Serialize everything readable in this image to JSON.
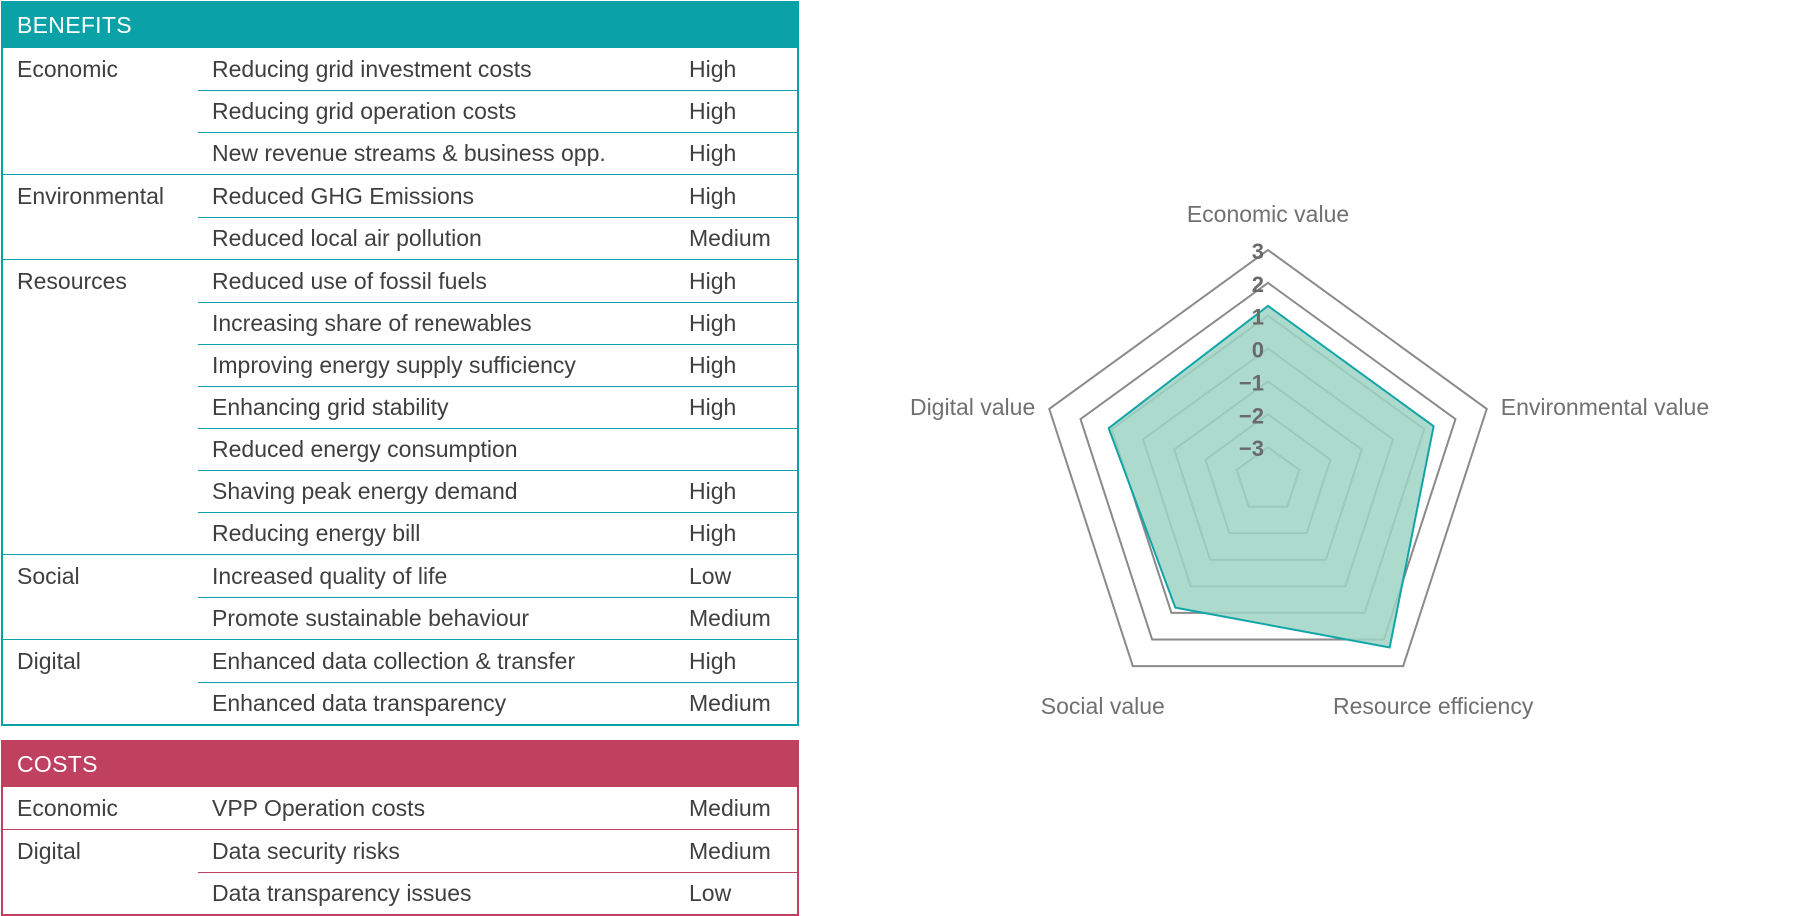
{
  "benefits": {
    "title": "BENEFITS",
    "rows": [
      {
        "category": "Economic",
        "benefit": "Reducing grid investment costs",
        "level": "High"
      },
      {
        "category": "",
        "benefit": "Reducing grid operation costs",
        "level": "High"
      },
      {
        "category": "",
        "benefit": "New revenue streams & business opp.",
        "level": "High"
      },
      {
        "category": "Environmental",
        "benefit": "Reduced GHG Emissions",
        "level": "High"
      },
      {
        "category": "",
        "benefit": "Reduced local air pollution",
        "level": "Medium"
      },
      {
        "category": "Resources",
        "benefit": "Reduced use of fossil fuels",
        "level": "High"
      },
      {
        "category": "",
        "benefit": "Increasing share of renewables",
        "level": "High"
      },
      {
        "category": "",
        "benefit": "Improving energy supply sufficiency",
        "level": "High"
      },
      {
        "category": "",
        "benefit": "Enhancing grid stability",
        "level": "High"
      },
      {
        "category": "",
        "benefit": "Reduced energy consumption",
        "level": ""
      },
      {
        "category": "",
        "benefit": "Shaving peak energy demand",
        "level": "High"
      },
      {
        "category": "",
        "benefit": "Reducing energy bill",
        "level": "High"
      },
      {
        "category": "Social",
        "benefit": "Increased quality of life",
        "level": "Low"
      },
      {
        "category": "",
        "benefit": "Promote sustainable behaviour",
        "level": "Medium"
      },
      {
        "category": "Digital",
        "benefit": "Enhanced data collection & transfer",
        "level": "High"
      },
      {
        "category": "",
        "benefit": "Enhanced data transparency",
        "level": "Medium"
      }
    ]
  },
  "costs": {
    "title": "COSTS",
    "rows": [
      {
        "category": "Economic",
        "benefit": "VPP Operation costs",
        "level": "Medium"
      },
      {
        "category": "Digital",
        "benefit": "Data security risks",
        "level": "Medium"
      },
      {
        "category": "",
        "benefit": "Data transparency issues",
        "level": "Low"
      }
    ]
  },
  "chart_data": {
    "type": "radar",
    "axes": [
      "Economic value",
      "Environmental value",
      "Resource efficiency",
      "Social value",
      "Digital value"
    ],
    "tick_labels": [
      "3",
      "2",
      "1",
      "0",
      "-1",
      "-2",
      "-3"
    ],
    "rlim": [
      -4,
      3
    ],
    "grid": true,
    "series": [
      {
        "values": [
          1.3,
          1.3,
          2.3,
          0.8,
          1.1
        ]
      }
    ],
    "colors": {
      "fill": "#9dd4c3",
      "stroke": "#12a5a8",
      "grid": "#8a8a8a",
      "axis_label": "#707070",
      "tick_label": "#6a6a6a"
    }
  },
  "colors": {
    "benefits_accent": "#0aa2a6",
    "costs_accent": "#c0405f"
  }
}
